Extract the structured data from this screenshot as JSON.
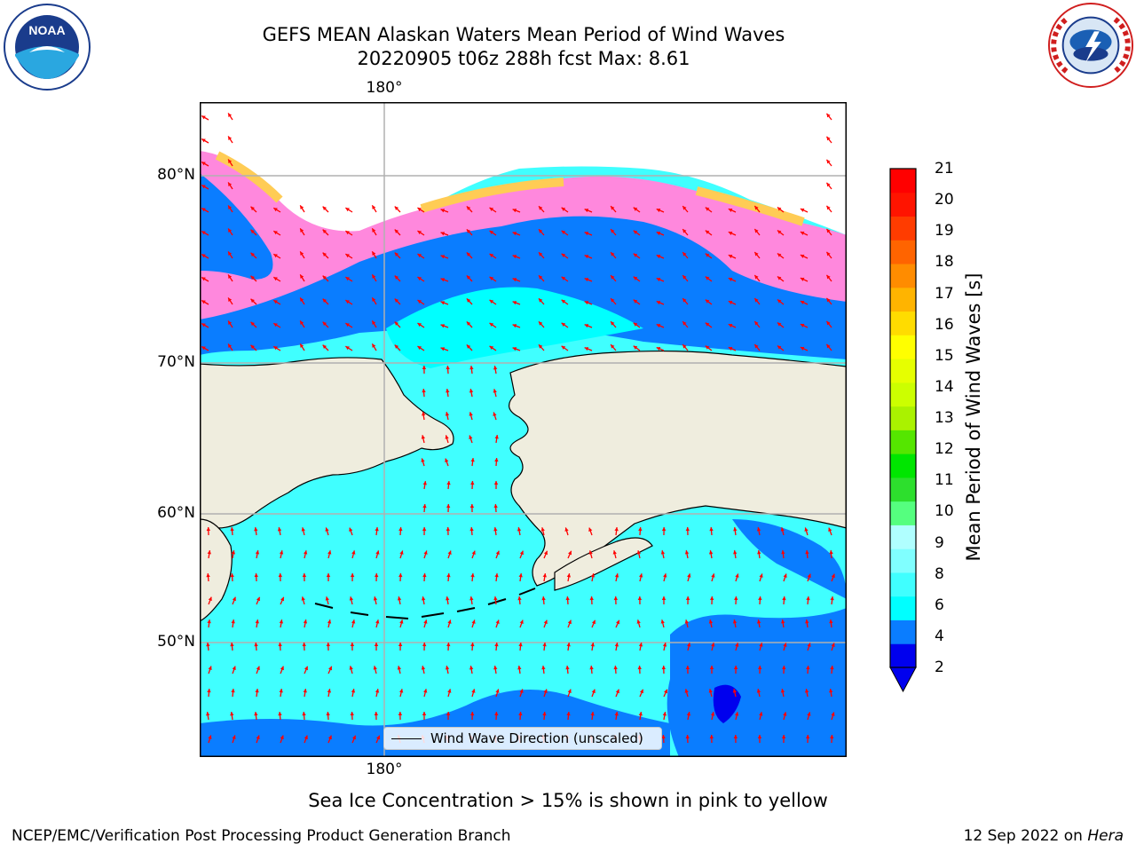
{
  "title": {
    "line1": "GEFS MEAN Alaskan Waters Mean Period of Wind Waves",
    "line2": "20220905 t06z 288h fcst   Max: 8.61"
  },
  "map": {
    "longitude_labels": [
      "180°",
      "180°"
    ],
    "latitude_labels": [
      "80°N",
      "70°N",
      "60°N",
      "50°N"
    ],
    "legend_label": "Wind Wave Direction (unscaled)",
    "arrow_color": "#ff0000",
    "land_color": "#efedde",
    "grid_color": "#b0b0b0"
  },
  "colorbar": {
    "label": "Mean Period of Wind Waves [s]",
    "ticks": [
      "21",
      "20",
      "19",
      "18",
      "17",
      "16",
      "15",
      "14",
      "13",
      "12",
      "11",
      "10",
      "9",
      "8",
      "6",
      "4",
      "2"
    ],
    "colors": [
      "#0000ee",
      "#0a7dff",
      "#00ffff",
      "#40ffff",
      "#80ffff",
      "#b0ffff",
      "#55ff7f",
      "#2ddf2d",
      "#00e600",
      "#55e600",
      "#aaf200",
      "#ccff00",
      "#e6ff00",
      "#ffff00",
      "#ffdc00",
      "#ffb400",
      "#ff8c00",
      "#ff6400",
      "#ff3c00",
      "#ff1400",
      "#ff0000"
    ]
  },
  "footer": {
    "note": "Sea Ice Concentration > 15% is shown in pink to yellow",
    "branch": "NCEP/EMC/Verification Post Processing Product Generation Branch",
    "date": "12 Sep 2022 on",
    "machine": "Hera"
  },
  "logos": {
    "noaa_text": "NOAA",
    "nws_text": "NATIONAL WEATHER SERVICE"
  }
}
